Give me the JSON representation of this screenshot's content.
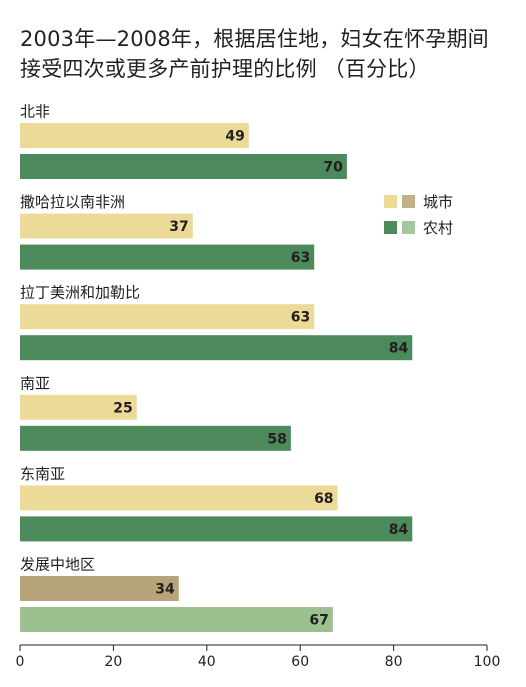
{
  "chart_data": {
    "type": "bar",
    "orientation": "horizontal",
    "title": "2003年—2008年，根据居住地，妇女在怀孕期间\n接受四次或更多产前护理的比例 （百分比）",
    "categories": [
      "北非",
      "撒哈拉以南非洲",
      "拉丁美洲和加勒比",
      "南亚",
      "东南亚",
      "发展中地区"
    ],
    "series": [
      {
        "name": "城市",
        "values": [
          49,
          37,
          63,
          25,
          68,
          34
        ]
      },
      {
        "name": "农村",
        "values": [
          70,
          63,
          84,
          58,
          84,
          67
        ]
      }
    ],
    "xlim": [
      0,
      100
    ],
    "x_ticks": [
      0,
      20,
      40,
      60,
      80,
      100
    ],
    "legend_position": "right",
    "grid": false,
    "colors": {
      "urban": "#ecdb98",
      "rural": "#4d8a5b",
      "urban_highlight": "#b8a47a",
      "rural_highlight": "#9cc08f",
      "legend_urban_highlight": "#c2b08b",
      "legend_rural_highlight": "#a5c79b",
      "axis": "#231f20"
    },
    "highlight_category_index": 5
  }
}
